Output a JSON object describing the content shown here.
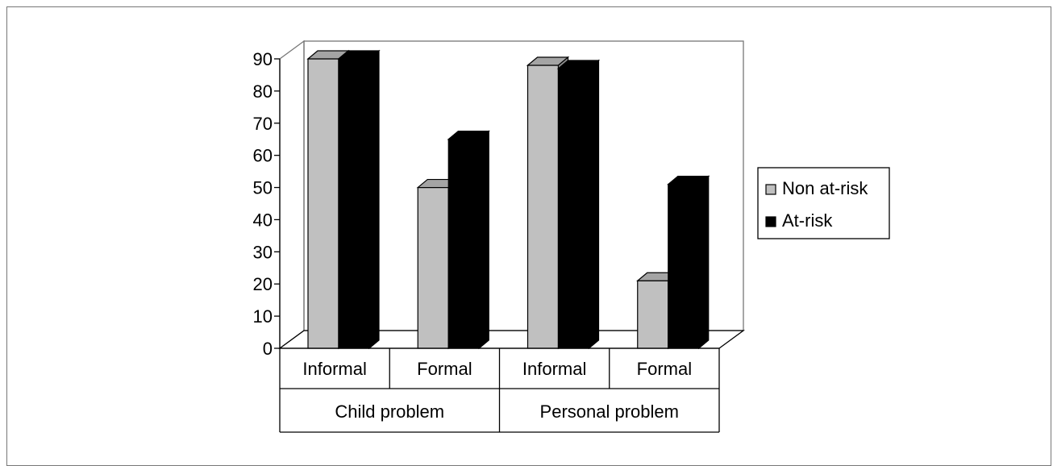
{
  "chart_data": {
    "type": "bar",
    "title": "",
    "xlabel": "",
    "ylabel": "",
    "ylim": [
      0,
      90
    ],
    "yticks": [
      0,
      10,
      20,
      30,
      40,
      50,
      60,
      70,
      80,
      90
    ],
    "three_d": true,
    "grid": false,
    "legend_position": "right",
    "categories": [
      "Informal",
      "Formal",
      "Informal",
      "Formal"
    ],
    "groups": [
      {
        "label": "Child problem",
        "categories": [
          "Informal",
          "Formal"
        ]
      },
      {
        "label": "Personal problem",
        "categories": [
          "Informal",
          "Formal"
        ]
      }
    ],
    "series": [
      {
        "name": "Non at-risk",
        "color": "#c0c0c0",
        "values": [
          90,
          50,
          88,
          21
        ]
      },
      {
        "name": "At-risk",
        "color": "#000000",
        "values": [
          90,
          65,
          87,
          51
        ]
      }
    ]
  }
}
